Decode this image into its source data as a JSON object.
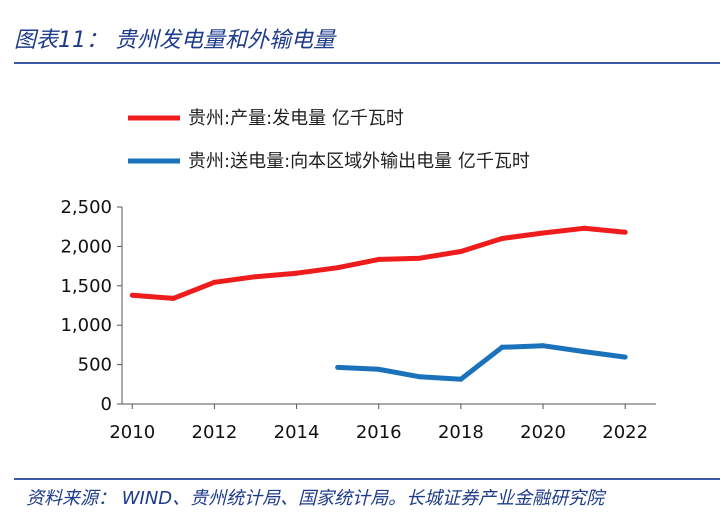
{
  "header": {
    "title": "图表11：  贵州发电量和外输电量"
  },
  "footer": {
    "source": "资料来源：  WIND、贵州统计局、国家统计局。长城证券产业金融研究院"
  },
  "chart_data": {
    "type": "line",
    "title": "",
    "xlabel": "",
    "ylabel": "",
    "x": [
      2010,
      2011,
      2012,
      2013,
      2014,
      2015,
      2016,
      2017,
      2018,
      2019,
      2020,
      2021,
      2022
    ],
    "xticks": [
      2010,
      2012,
      2014,
      2016,
      2018,
      2020,
      2022
    ],
    "xtick_labels": [
      "2010",
      "2012",
      "2014",
      "2016",
      "2018",
      "2020",
      "2022"
    ],
    "ylim": [
      0,
      2500
    ],
    "yticks": [
      0,
      500,
      1000,
      1500,
      2000,
      2500
    ],
    "ytick_labels": [
      "0",
      "500",
      "1,000",
      "1,500",
      "2,000",
      "2,500"
    ],
    "legend_position": "top-left",
    "series": [
      {
        "name": "贵州:产量:发电量 亿千瓦时",
        "color": "#ee1c1c",
        "values": [
          1380,
          1340,
          1545,
          1615,
          1660,
          1730,
          1835,
          1850,
          1935,
          2100,
          2170,
          2230,
          2180
        ]
      },
      {
        "name": "贵州:送电量:向本区域外输出电量 亿千瓦时",
        "color": "#1a72bb",
        "values": [
          null,
          null,
          null,
          null,
          null,
          465,
          440,
          345,
          315,
          720,
          740,
          665,
          595
        ]
      }
    ]
  }
}
